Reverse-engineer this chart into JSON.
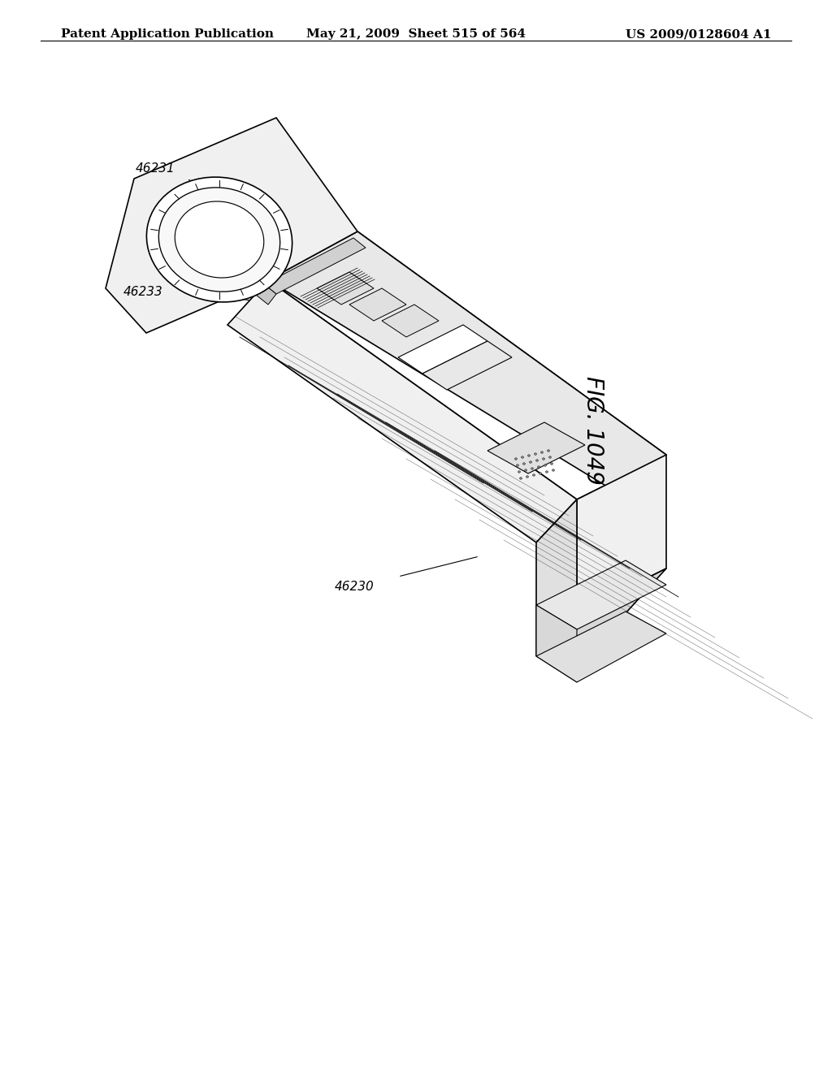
{
  "background_color": "#ffffff",
  "header_left": "Patent Application Publication",
  "header_middle": "May 21, 2009  Sheet 515 of 564",
  "header_right": "US 2009/0128604 A1",
  "fig_label": "FIG. 1049",
  "ref_46231": "46231",
  "ref_46233": "46233",
  "ref_46230": "46230",
  "line_color": "#000000",
  "line_width": 1.2,
  "header_fontsize": 11
}
